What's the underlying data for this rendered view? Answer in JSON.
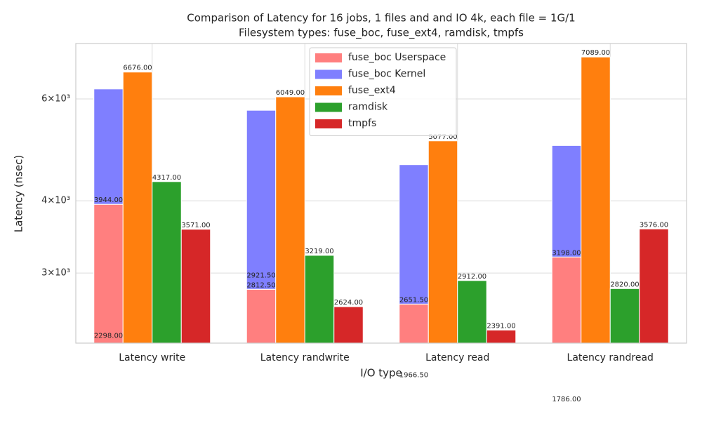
{
  "chart_data": {
    "type": "bar",
    "title": "Comparison of Latency for 16 jobs, 1 files and  and IO 4k, each file = 1G/1",
    "subtitle": "Filesystem types: fuse_boc, fuse_ext4, ramdisk, tmpfs",
    "x_label": "I/O type",
    "y_label": "Latency (nsec)",
    "log_scale": true,
    "grid": true,
    "legend": "top-center",
    "categories": [
      "Latency write",
      "Latency randwrite",
      "Latency read",
      "Latency randread"
    ],
    "series": [
      {
        "name": "fuse_boc Userspace",
        "color": "#ff7f7f",
        "stack": "fuse_boc",
        "values": [
          3944,
          2812.5,
          2651.5,
          3198
        ],
        "value_labels": [
          "3944.00",
          "2812.50",
          "2651.50",
          "3198.00"
        ]
      },
      {
        "name": "fuse_boc Kernel",
        "color": "#7f7fff",
        "stack": "fuse_boc",
        "values": [
          2298,
          2921.5,
          1966.5,
          1786
        ],
        "value_labels": [
          "2298.00",
          "2921.50",
          "1966.50",
          "1786.00"
        ]
      },
      {
        "name": "fuse_ext4",
        "color": "#ff7f0e",
        "values": [
          6676,
          6049,
          5077,
          7089
        ],
        "value_labels": [
          "6676.00",
          "6049.00",
          "5077.00",
          "7089.00"
        ]
      },
      {
        "name": "ramdisk",
        "color": "#2ca02c",
        "values": [
          4317,
          3219,
          2912,
          2820
        ],
        "value_labels": [
          "4317.00",
          "3219.00",
          "2912.00",
          "2820.00"
        ]
      },
      {
        "name": "tmpfs",
        "color": "#d62728",
        "values": [
          3571,
          2624,
          2391,
          3576
        ],
        "value_labels": [
          "3571.00",
          "2624.00",
          "2391.00",
          "3576.00"
        ]
      }
    ],
    "ylim": [
      2270,
      7480
    ],
    "yticks": [
      {
        "value": 3000,
        "label": "3×10³"
      },
      {
        "value": 4000,
        "label": "4×10³"
      },
      {
        "value": 6000,
        "label": "6×10³"
      }
    ]
  }
}
